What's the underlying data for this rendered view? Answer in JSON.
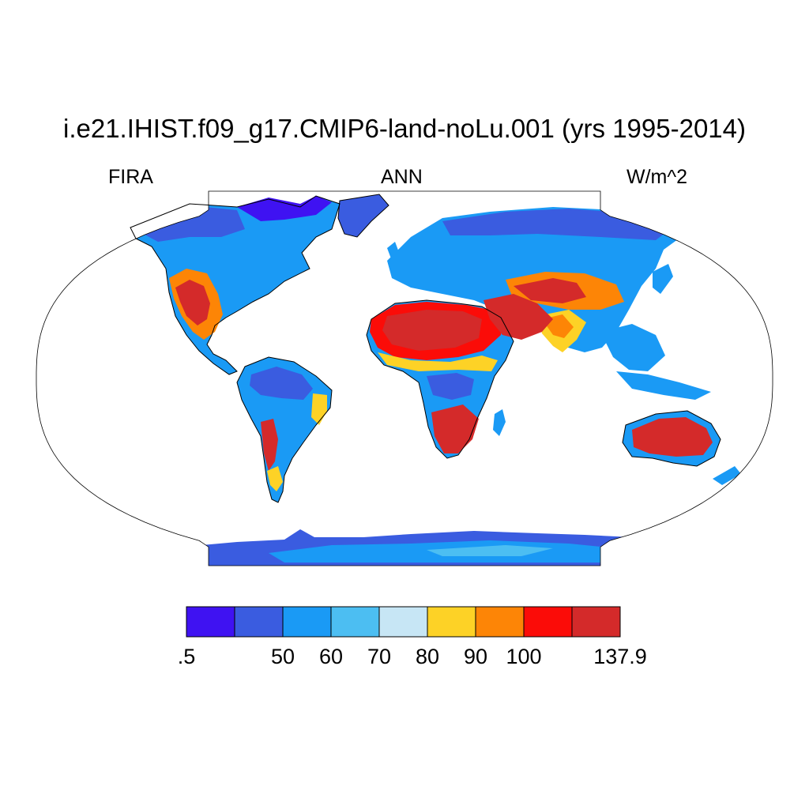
{
  "title": "i.e21.IHIST.f09_g17.CMIP6-land-noLu.001 (yrs 1995-2014)",
  "left_label": "FIRA",
  "center_label": "ANN",
  "right_label": "W/m^2",
  "projection": "robinson",
  "colorbar": {
    "colors": [
      "#3f12f2",
      "#3a5ce0",
      "#1a9af5",
      "#4cbef2",
      "#c7e6f5",
      "#fdd226",
      "#fd8506",
      "#fb0c08",
      "#d42a2a"
    ],
    "labels": [
      {
        "text": ".5",
        "boundary": 0
      },
      {
        "text": "50",
        "boundary": 2
      },
      {
        "text": "60",
        "boundary": 3
      },
      {
        "text": "70",
        "boundary": 4
      },
      {
        "text": "80",
        "boundary": 5
      },
      {
        "text": "90",
        "boundary": 6
      },
      {
        "text": "100",
        "boundary": 7
      },
      {
        "text": "137.9",
        "boundary": 9
      }
    ]
  }
}
